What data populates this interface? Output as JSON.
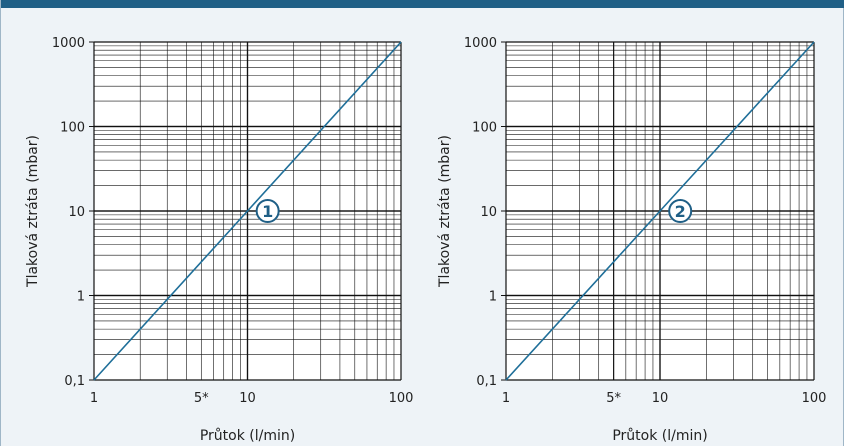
{
  "chart_data": [
    {
      "type": "line",
      "badge": "1",
      "xlabel": "Průtok (l/min)",
      "ylabel": "Tlaková ztráta (mbar)",
      "xscale": "log",
      "yscale": "log",
      "xlim": [
        1,
        100
      ],
      "ylim": [
        0.1,
        1000
      ],
      "x_tick_labels": [
        {
          "value": 1,
          "label": "1"
        },
        {
          "value": 5,
          "label": "5*"
        },
        {
          "value": 10,
          "label": "10"
        },
        {
          "value": 100,
          "label": "100"
        }
      ],
      "y_tick_labels": [
        {
          "value": 0.1,
          "label": "0,1"
        },
        {
          "value": 1,
          "label": "1"
        },
        {
          "value": 10,
          "label": "10"
        },
        {
          "value": 100,
          "label": "100"
        },
        {
          "value": 1000,
          "label": "1000"
        }
      ],
      "grid": true,
      "series": [
        {
          "color": "#1f6f99",
          "x": [
            1,
            10,
            100
          ],
          "y": [
            0.1,
            10,
            1000
          ]
        }
      ]
    },
    {
      "type": "line",
      "badge": "2",
      "xlabel": "Průtok (l/min)",
      "ylabel": "Tlaková ztráta (mbar)",
      "xscale": "log",
      "yscale": "log",
      "xlim": [
        1,
        100
      ],
      "ylim": [
        0.1,
        1000
      ],
      "x_tick_labels": [
        {
          "value": 1,
          "label": "1"
        },
        {
          "value": 5,
          "label": "5*"
        },
        {
          "value": 10,
          "label": "10"
        },
        {
          "value": 100,
          "label": "100"
        }
      ],
      "y_tick_labels": [
        {
          "value": 0.1,
          "label": "0,1"
        },
        {
          "value": 1,
          "label": "1"
        },
        {
          "value": 10,
          "label": "10"
        },
        {
          "value": 100,
          "label": "100"
        },
        {
          "value": 1000,
          "label": "1000"
        }
      ],
      "grid": true,
      "series": [
        {
          "color": "#1f6f99",
          "x": [
            1,
            10,
            100
          ],
          "y": [
            0.1,
            10,
            1000
          ]
        }
      ]
    }
  ]
}
